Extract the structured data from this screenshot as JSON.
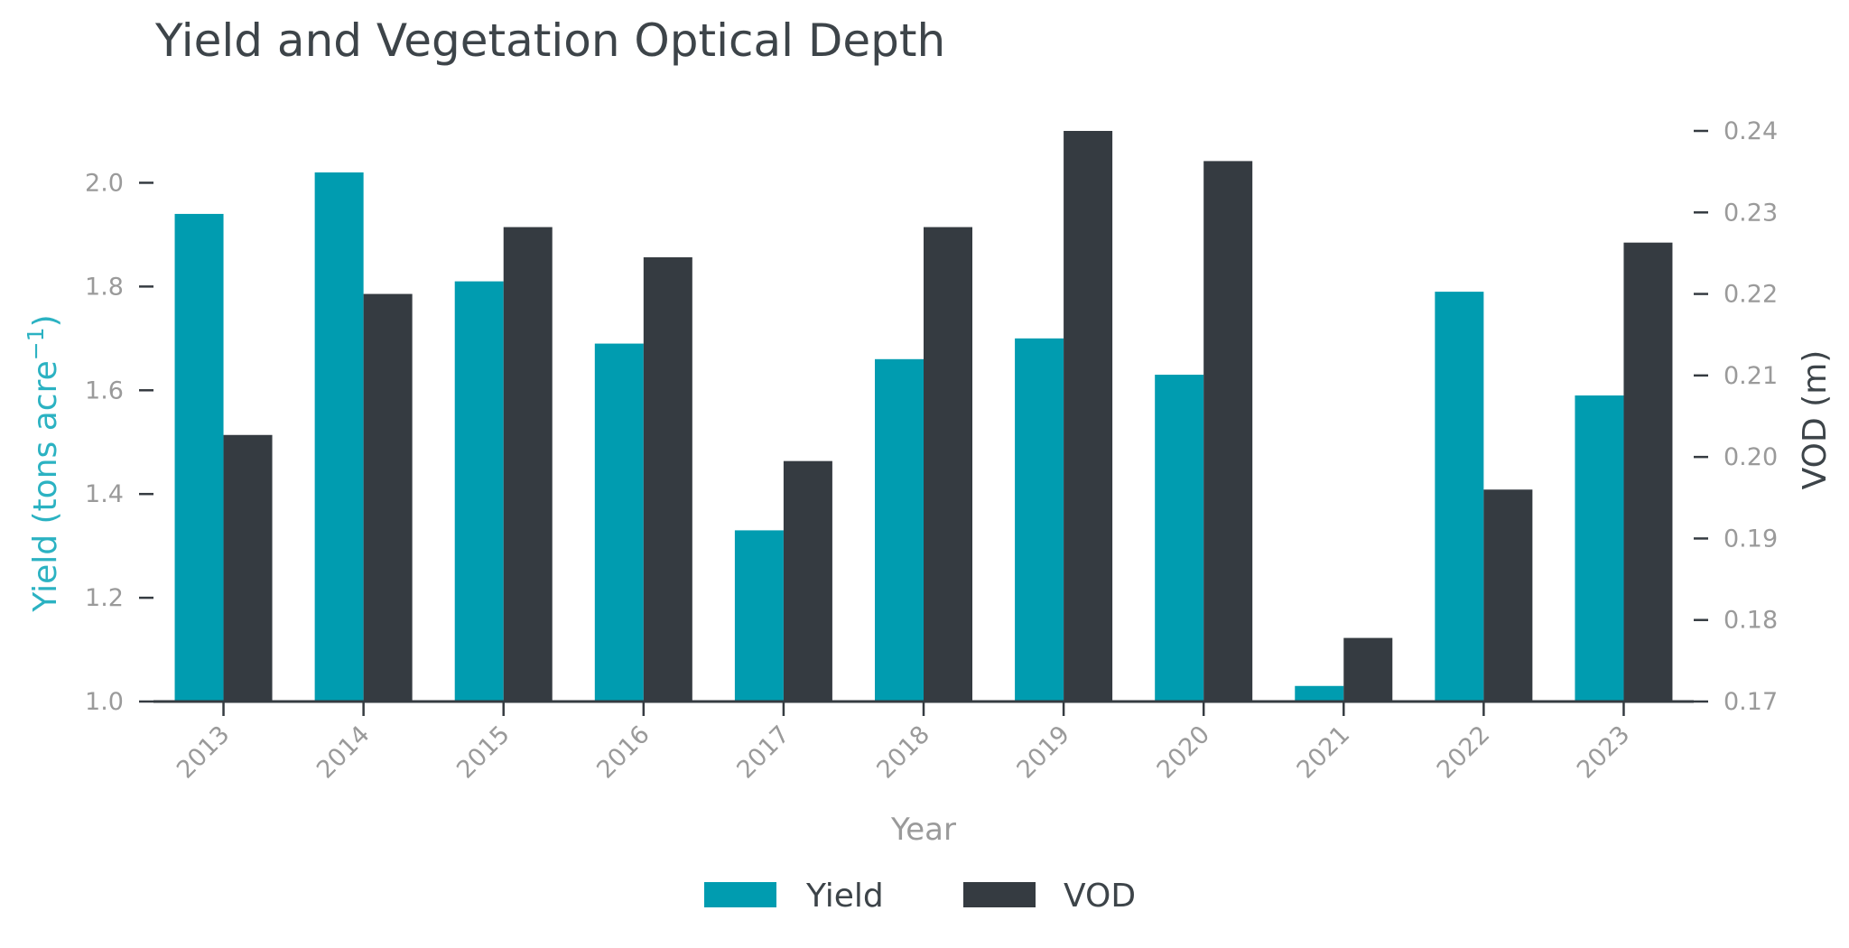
{
  "chart_data": {
    "type": "bar",
    "title": "Yield and Vegetation Optical Depth",
    "xlabel": "Year",
    "ylabel_left": "Yield (tons acre",
    "ylabel_left_sup": "−1",
    "ylabel_left_close": ")",
    "ylabel_right": "VOD (m)",
    "categories": [
      "2013",
      "2014",
      "2015",
      "2016",
      "2017",
      "2018",
      "2019",
      "2020",
      "2021",
      "2022",
      "2023"
    ],
    "ylim_left": [
      1.0,
      2.1
    ],
    "ylim_right": [
      0.17,
      0.24
    ],
    "yticks_left": [
      "1.0",
      "1.2",
      "1.4",
      "1.6",
      "1.8",
      "2.0"
    ],
    "yticks_right": [
      "0.17",
      "0.18",
      "0.19",
      "0.20",
      "0.21",
      "0.22",
      "0.23",
      "0.24"
    ],
    "series": [
      {
        "name": "Yield",
        "axis": "left",
        "color": "#009cb0",
        "values": [
          1.94,
          2.02,
          1.81,
          1.69,
          1.33,
          1.66,
          1.7,
          1.63,
          1.03,
          1.79,
          1.59
        ]
      },
      {
        "name": "VOD",
        "axis": "right",
        "color": "#353b41",
        "values": [
          0.2027,
          0.22,
          0.2282,
          0.2245,
          0.1995,
          0.2282,
          0.24,
          0.2363,
          0.1778,
          0.196,
          0.2263
        ]
      }
    ],
    "legend": [
      "Yield",
      "VOD"
    ],
    "grid": false,
    "legend_position": "bottom-center"
  },
  "colors": {
    "yield": "#009cb0",
    "vod": "#353b41",
    "axis": "#353b41",
    "tick_text": "#9a9a9a",
    "title": "#3d4449",
    "left_label": "#2bb2c2"
  }
}
